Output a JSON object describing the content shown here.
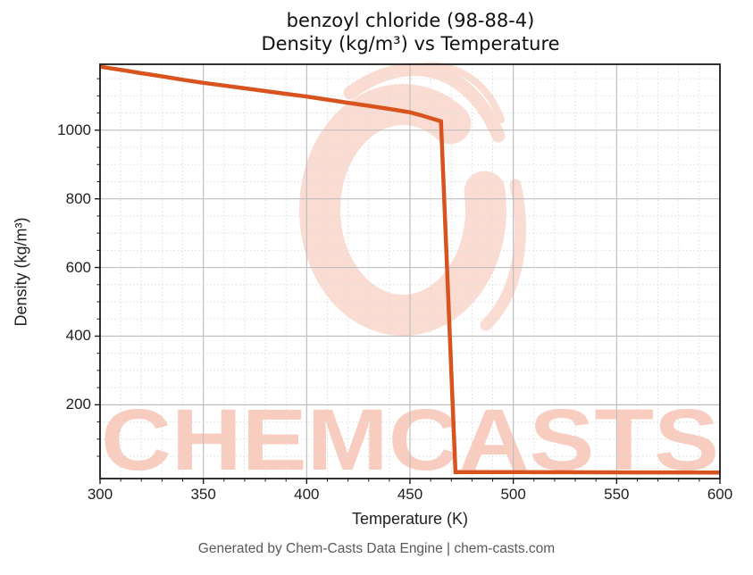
{
  "title": {
    "line1": "benzoyl chloride (98-88-4)",
    "line2": "Density (kg/m³) vs Temperature"
  },
  "footer": "Generated by Chem-Casts Data Engine | chem-casts.com",
  "watermark": {
    "text": "CHEMCASTS",
    "logo": "paint-swirl-ring-logo",
    "ring_color": "#fadcd2",
    "text_color": "#f8cdbf"
  },
  "colors": {
    "background": "#ffffff",
    "curve": "#d8531e",
    "spine": "#1c1c1c",
    "grid_major": "#bfbfbf",
    "grid_minor": "#dddddd",
    "title_text": "#111111",
    "tick_text": "#1f1f1f",
    "footer_text": "#595959"
  },
  "chart_data": {
    "type": "line",
    "title": "benzoyl chloride (98-88-4) — Density (kg/m³) vs Temperature",
    "xlabel": "Temperature (K)",
    "ylabel": "Density (kg/m³)",
    "xlim": [
      300,
      600
    ],
    "ylim": [
      -15,
      1192
    ],
    "x_major_ticks": [
      300,
      350,
      400,
      450,
      500,
      550,
      600
    ],
    "y_major_ticks": [
      200,
      400,
      600,
      800,
      1000
    ],
    "x_minor_step": 10,
    "y_minor_step": 50,
    "grid": "major-solid-minor-dotted",
    "legend": "none",
    "series": [
      {
        "name": "density",
        "color": "#d8531e",
        "points": [
          [
            300,
            1185
          ],
          [
            310,
            1176
          ],
          [
            320,
            1166
          ],
          [
            330,
            1157
          ],
          [
            340,
            1147
          ],
          [
            350,
            1138
          ],
          [
            360,
            1130
          ],
          [
            370,
            1122
          ],
          [
            380,
            1114
          ],
          [
            390,
            1106
          ],
          [
            400,
            1098
          ],
          [
            410,
            1089
          ],
          [
            420,
            1080
          ],
          [
            430,
            1071
          ],
          [
            440,
            1062
          ],
          [
            450,
            1052
          ],
          [
            455,
            1044
          ],
          [
            460,
            1035
          ],
          [
            465,
            1026
          ],
          [
            472,
            4.0
          ],
          [
            480,
            3.9
          ],
          [
            500,
            3.6
          ],
          [
            520,
            3.4
          ],
          [
            540,
            3.2
          ],
          [
            560,
            3.0
          ],
          [
            580,
            2.9
          ],
          [
            600,
            2.8
          ]
        ]
      }
    ]
  }
}
